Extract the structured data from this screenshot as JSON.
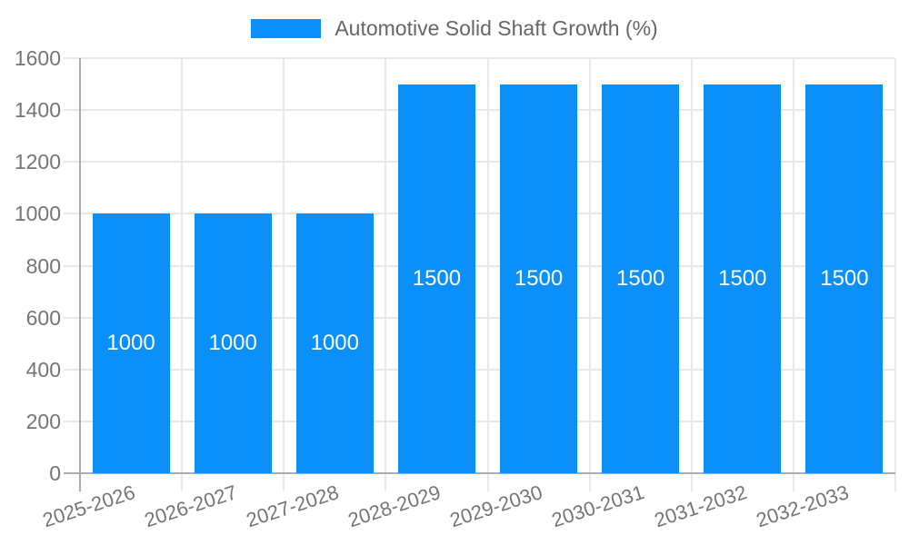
{
  "legend": {
    "label": "Automotive Solid Shaft Growth (%)"
  },
  "chart_data": {
    "type": "bar",
    "title": "",
    "xlabel": "",
    "ylabel": "",
    "categories": [
      "2025-2026",
      "2026-2027",
      "2027-2028",
      "2028-2029",
      "2029-2030",
      "2030-2031",
      "2031-2032",
      "2032-2033"
    ],
    "series": [
      {
        "name": "Automotive Solid Shaft Growth (%)",
        "values": [
          1000,
          1000,
          1000,
          1500,
          1500,
          1500,
          1500,
          1500
        ],
        "data_labels": [
          "1000",
          "1000",
          "1000",
          "1500",
          "1500",
          "1500",
          "1500",
          "1500"
        ]
      }
    ],
    "ylim": [
      0,
      1600
    ],
    "yticks": [
      0,
      200,
      400,
      600,
      800,
      1000,
      1200,
      1400,
      1600
    ],
    "grid": true,
    "legend_position": "top",
    "colors": {
      "bar": "#0a90f8",
      "grid_line": "#e8e8e8",
      "axis_line": "#ababab",
      "tick_text": "#757575",
      "legend_text": "#666666",
      "bar_label_text": "#ffffff"
    }
  }
}
